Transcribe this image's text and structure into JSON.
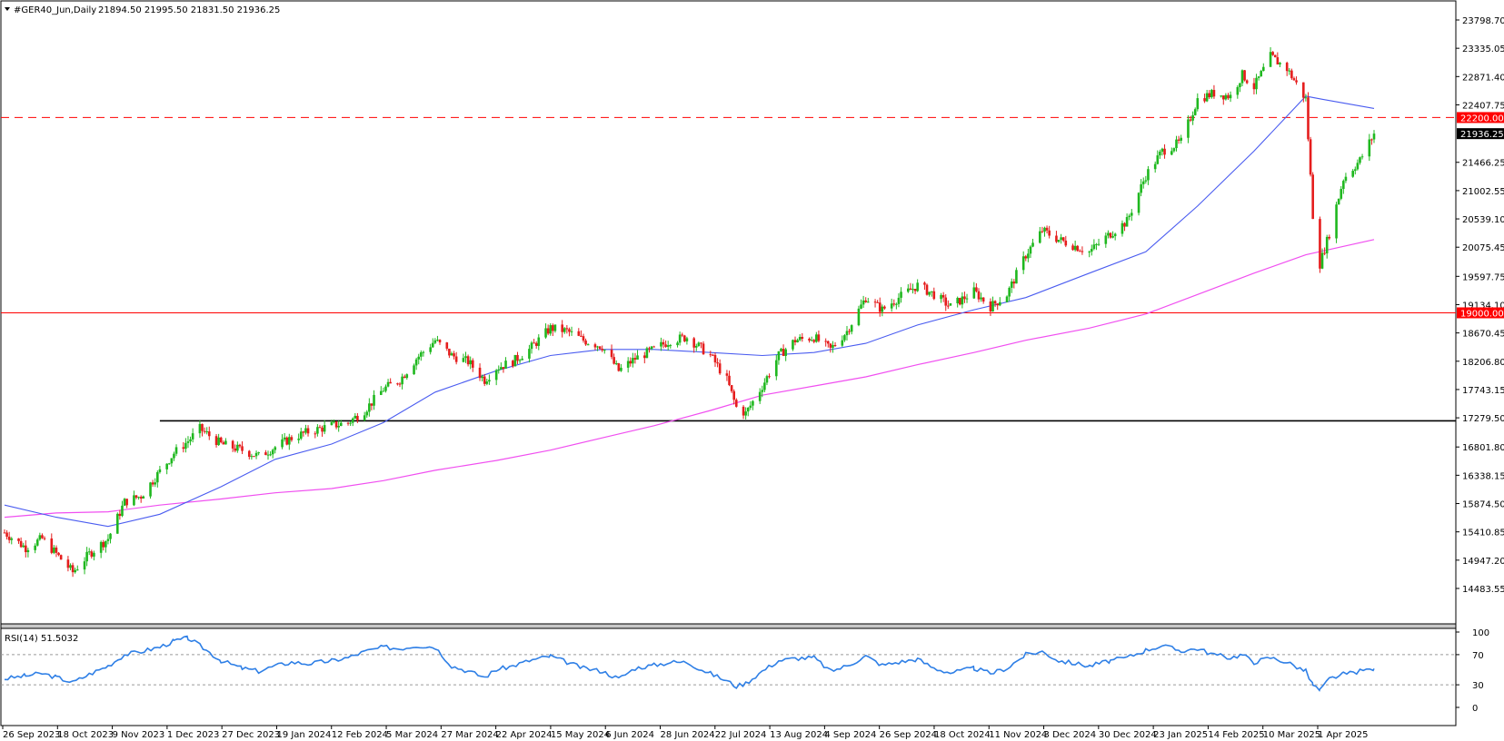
{
  "header": {
    "symbol": "#GER40_Jun,Daily",
    "ohlc": "21894.50 21995.50 21831.50 21936.25"
  },
  "rsi_header": "RSI(14) 51.5032",
  "colors": {
    "bull": "#1fb81f",
    "bear": "#e51d1d",
    "ma_fast": "#4a5cf0",
    "ma_slow": "#f04ff0",
    "rsi": "#2e7fe6",
    "support": "#000000",
    "level_red": "#ff0000",
    "price_tag_bg": "#000000"
  },
  "chart_data": [
    {
      "type": "candlestick",
      "title": "#GER40_Jun,Daily",
      "ylim": [
        14483.55,
        23798.7
      ],
      "y_ticks": [
        "23798.70",
        "23335.05",
        "22871.40",
        "22407.75",
        "21466.25",
        "21002.55",
        "20539.10",
        "20075.45",
        "19597.75",
        "19134.10",
        "18670.45",
        "18206.80",
        "17743.15",
        "17279.50",
        "16801.80",
        "16338.15",
        "15874.50",
        "15410.85",
        "14947.20",
        "14483.55"
      ],
      "x_tick_labels": [
        "26 Sep 2023",
        "18 Oct 2023",
        "9 Nov 2023",
        "1 Dec 2023",
        "27 Dec 2023",
        "19 Jan 2024",
        "12 Feb 2024",
        "5 Mar 2024",
        "27 Mar 2024",
        "22 Apr 2024",
        "15 May 2024",
        "6 Jun 2024",
        "28 Jun 2024",
        "22 Jul 2024",
        "13 Aug 2024",
        "4 Sep 2024",
        "26 Sep 2024",
        "18 Oct 2024",
        "11 Nov 2024",
        "3 Dec 2024",
        "30 Dec 2024",
        "23 Jan 2025",
        "14 Feb 2025",
        "10 Mar 2025",
        "1 Apr 2025"
      ],
      "close_series": [
        [
          "26 Sep 2023",
          15400
        ],
        [
          "5 Oct 2023",
          15150
        ],
        [
          "12 Oct 2023",
          15300
        ],
        [
          "18 Oct 2023",
          15050
        ],
        [
          "25 Oct 2023",
          14750
        ],
        [
          "1 Nov 2023",
          15050
        ],
        [
          "9 Nov 2023",
          15300
        ],
        [
          "16 Nov 2023",
          15900
        ],
        [
          "23 Nov 2023",
          16000
        ],
        [
          "1 Dec 2023",
          16400
        ],
        [
          "7 Dec 2023",
          16700
        ],
        [
          "13 Dec 2023",
          16900
        ],
        [
          "18 Dec 2023",
          17100
        ],
        [
          "27 Dec 2023",
          16850
        ],
        [
          "5 Jan 2024",
          16750
        ],
        [
          "12 Jan 2024",
          16650
        ],
        [
          "19 Jan 2024",
          16800
        ],
        [
          "26 Jan 2024",
          16950
        ],
        [
          "2 Feb 2024",
          17050
        ],
        [
          "12 Feb 2024",
          17150
        ],
        [
          "19 Feb 2024",
          17200
        ],
        [
          "26 Feb 2024",
          17400
        ],
        [
          "5 Mar 2024",
          17750
        ],
        [
          "12 Mar 2024",
          17900
        ],
        [
          "19 Mar 2024",
          18250
        ],
        [
          "27 Mar 2024",
          18550
        ],
        [
          "3 Apr 2024",
          18300
        ],
        [
          "10 Apr 2024",
          18200
        ],
        [
          "17 Apr 2024",
          17900
        ],
        [
          "22 Apr 2024",
          18100
        ],
        [
          "29 Apr 2024",
          18200
        ],
        [
          "6 May 2024",
          18400
        ],
        [
          "15 May 2024",
          18750
        ],
        [
          "22 May 2024",
          18700
        ],
        [
          "29 May 2024",
          18550
        ],
        [
          "6 Jun 2024",
          18450
        ],
        [
          "13 Jun 2024",
          18050
        ],
        [
          "20 Jun 2024",
          18250
        ],
        [
          "28 Jun 2024",
          18400
        ],
        [
          "5 Jul 2024",
          18550
        ],
        [
          "12 Jul 2024",
          18600
        ],
        [
          "17 Jul 2024",
          18450
        ],
        [
          "22 Jul 2024",
          18300
        ],
        [
          "29 Jul 2024",
          17900
        ],
        [
          "2 Aug 2024",
          17450
        ],
        [
          "6 Aug 2024",
          17350
        ],
        [
          "13 Aug 2024",
          17800
        ],
        [
          "20 Aug 2024",
          18300
        ],
        [
          "27 Aug 2024",
          18550
        ],
        [
          "4 Sep 2024",
          18600
        ],
        [
          "11 Sep 2024",
          18400
        ],
        [
          "18 Sep 2024",
          18700
        ],
        [
          "26 Sep 2024",
          19250
        ],
        [
          "3 Oct 2024",
          19050
        ],
        [
          "10 Oct 2024",
          19250
        ],
        [
          "18 Oct 2024",
          19450
        ],
        [
          "25 Oct 2024",
          19300
        ],
        [
          "1 Nov 2024",
          19100
        ],
        [
          "11 Nov 2024",
          19350
        ],
        [
          "18 Nov 2024",
          19100
        ],
        [
          "25 Nov 2024",
          19300
        ],
        [
          "3 Dec 2024",
          19950
        ],
        [
          "10 Dec 2024",
          20350
        ],
        [
          "17 Dec 2024",
          20200
        ],
        [
          "30 Dec 2024",
          20000
        ],
        [
          "8 Jan 2025",
          20300
        ],
        [
          "15 Jan 2025",
          20500
        ],
        [
          "23 Jan 2025",
          21250
        ],
        [
          "30 Jan 2025",
          21650
        ],
        [
          "7 Feb 2025",
          21800
        ],
        [
          "14 Feb 2025",
          22500
        ],
        [
          "21 Feb 2025",
          22600
        ],
        [
          "28 Feb 2025",
          22550
        ],
        [
          "5 Mar 2025",
          22900
        ],
        [
          "10 Mar 2025",
          22700
        ],
        [
          "17 Mar 2025",
          23200
        ],
        [
          "24 Mar 2025",
          23000
        ],
        [
          "1 Apr 2025",
          22500
        ],
        [
          "4 Apr 2025",
          20600
        ],
        [
          "7 Apr 2025",
          19800
        ],
        [
          "11 Apr 2025",
          20300
        ],
        [
          "17 Apr 2025",
          21200
        ],
        [
          "24 Apr 2025",
          21500
        ],
        [
          "30 Apr 2025",
          21936.25
        ]
      ],
      "ma_fast": [
        [
          "26 Sep 2023",
          15850
        ],
        [
          "18 Oct 2023",
          15650
        ],
        [
          "9 Nov 2023",
          15500
        ],
        [
          "1 Dec 2023",
          15700
        ],
        [
          "27 Dec 2023",
          16150
        ],
        [
          "19 Jan 2024",
          16600
        ],
        [
          "12 Feb 2024",
          16850
        ],
        [
          "5 Mar 2024",
          17200
        ],
        [
          "27 Mar 2024",
          17700
        ],
        [
          "22 Apr 2024",
          18050
        ],
        [
          "15 May 2024",
          18300
        ],
        [
          "6 Jun 2024",
          18400
        ],
        [
          "28 Jun 2024",
          18400
        ],
        [
          "22 Jul 2024",
          18350
        ],
        [
          "13 Aug 2024",
          18300
        ],
        [
          "4 Sep 2024",
          18350
        ],
        [
          "26 Sep 2024",
          18500
        ],
        [
          "18 Oct 2024",
          18800
        ],
        [
          "11 Nov 2024",
          19050
        ],
        [
          "3 Dec 2024",
          19250
        ],
        [
          "30 Dec 2024",
          19650
        ],
        [
          "23 Jan 2025",
          20000
        ],
        [
          "14 Feb 2025",
          20750
        ],
        [
          "10 Mar 2025",
          21650
        ],
        [
          "1 Apr 2025",
          22550
        ],
        [
          "8 Apr 2025",
          22500
        ],
        [
          "30 Apr 2025",
          22350
        ]
      ],
      "ma_slow": [
        [
          "26 Sep 2023",
          15650
        ],
        [
          "18 Oct 2023",
          15720
        ],
        [
          "9 Nov 2023",
          15740
        ],
        [
          "1 Dec 2023",
          15850
        ],
        [
          "27 Dec 2023",
          15950
        ],
        [
          "19 Jan 2024",
          16050
        ],
        [
          "12 Feb 2024",
          16120
        ],
        [
          "5 Mar 2024",
          16250
        ],
        [
          "27 Mar 2024",
          16420
        ],
        [
          "22 Apr 2024",
          16580
        ],
        [
          "15 May 2024",
          16750
        ],
        [
          "6 Jun 2024",
          16950
        ],
        [
          "28 Jun 2024",
          17150
        ],
        [
          "22 Jul 2024",
          17400
        ],
        [
          "13 Aug 2024",
          17650
        ],
        [
          "4 Sep 2024",
          17800
        ],
        [
          "26 Sep 2024",
          17950
        ],
        [
          "18 Oct 2024",
          18150
        ],
        [
          "11 Nov 2024",
          18350
        ],
        [
          "3 Dec 2024",
          18550
        ],
        [
          "30 Dec 2024",
          18750
        ],
        [
          "23 Jan 2025",
          18980
        ],
        [
          "14 Feb 2025",
          19300
        ],
        [
          "10 Mar 2025",
          19650
        ],
        [
          "1 Apr 2025",
          19950
        ],
        [
          "30 Apr 2025",
          20200
        ]
      ],
      "horizontal_levels": [
        {
          "value": 22200.0,
          "label": "22200.00",
          "style": "dashed",
          "color": "#ff0000"
        },
        {
          "value": 19000.0,
          "label": "19000.00",
          "style": "solid",
          "color": "#ff0000"
        },
        {
          "value": 17230.0,
          "style": "solid",
          "color": "#000000",
          "from": "1 Dec 2023"
        }
      ],
      "last_price": {
        "value": 21936.25,
        "label": "21936.25"
      }
    },
    {
      "type": "line",
      "title": "RSI(14) 51.5032",
      "ylim": [
        0,
        100
      ],
      "y_ticks": [
        "100",
        "70",
        "30",
        "0"
      ],
      "levels": [
        70,
        30
      ],
      "series": [
        {
          "name": "RSI(14)",
          "values": [
            [
              "26 Sep 2023",
              38
            ],
            [
              "5 Oct 2023",
              42
            ],
            [
              "12 Oct 2023",
              45
            ],
            [
              "18 Oct 2023",
              40
            ],
            [
              "25 Oct 2023",
              33
            ],
            [
              "1 Nov 2023",
              44
            ],
            [
              "9 Nov 2023",
              55
            ],
            [
              "16 Nov 2023",
              70
            ],
            [
              "23 Nov 2023",
              74
            ],
            [
              "1 Dec 2023",
              80
            ],
            [
              "7 Dec 2023",
              88
            ],
            [
              "13 Dec 2023",
              92
            ],
            [
              "18 Dec 2023",
              82
            ],
            [
              "27 Dec 2023",
              62
            ],
            [
              "5 Jan 2024",
              52
            ],
            [
              "12 Jan 2024",
              48
            ],
            [
              "19 Jan 2024",
              55
            ],
            [
              "26 Jan 2024",
              60
            ],
            [
              "2 Feb 2024",
              58
            ],
            [
              "12 Feb 2024",
              62
            ],
            [
              "19 Feb 2024",
              66
            ],
            [
              "26 Feb 2024",
              74
            ],
            [
              "5 Mar 2024",
              80
            ],
            [
              "12 Mar 2024",
              78
            ],
            [
              "19 Mar 2024",
              82
            ],
            [
              "27 Mar 2024",
              80
            ],
            [
              "3 Apr 2024",
              55
            ],
            [
              "10 Apr 2024",
              48
            ],
            [
              "17 Apr 2024",
              40
            ],
            [
              "22 Apr 2024",
              50
            ],
            [
              "29 Apr 2024",
              55
            ],
            [
              "6 May 2024",
              62
            ],
            [
              "15 May 2024",
              68
            ],
            [
              "22 May 2024",
              60
            ],
            [
              "29 May 2024",
              52
            ],
            [
              "6 Jun 2024",
              48
            ],
            [
              "13 Jun 2024",
              38
            ],
            [
              "20 Jun 2024",
              52
            ],
            [
              "28 Jun 2024",
              56
            ],
            [
              "5 Jul 2024",
              60
            ],
            [
              "12 Jul 2024",
              60
            ],
            [
              "17 Jul 2024",
              52
            ],
            [
              "22 Jul 2024",
              45
            ],
            [
              "29 Jul 2024",
              35
            ],
            [
              "2 Aug 2024",
              28
            ],
            [
              "6 Aug 2024",
              32
            ],
            [
              "13 Aug 2024",
              48
            ],
            [
              "20 Aug 2024",
              62
            ],
            [
              "27 Aug 2024",
              65
            ],
            [
              "4 Sep 2024",
              66
            ],
            [
              "11 Sep 2024",
              48
            ],
            [
              "18 Sep 2024",
              55
            ],
            [
              "26 Sep 2024",
              68
            ],
            [
              "3 Oct 2024",
              56
            ],
            [
              "10 Oct 2024",
              60
            ],
            [
              "18 Oct 2024",
              64
            ],
            [
              "25 Oct 2024",
              52
            ],
            [
              "1 Nov 2024",
              46
            ],
            [
              "11 Nov 2024",
              52
            ],
            [
              "18 Nov 2024",
              45
            ],
            [
              "25 Nov 2024",
              52
            ],
            [
              "3 Dec 2024",
              70
            ],
            [
              "10 Dec 2024",
              74
            ],
            [
              "17 Dec 2024",
              62
            ],
            [
              "30 Dec 2024",
              55
            ],
            [
              "8 Jan 2025",
              62
            ],
            [
              "15 Jan 2025",
              66
            ],
            [
              "23 Jan 2025",
              76
            ],
            [
              "30 Jan 2025",
              82
            ],
            [
              "7 Feb 2025",
              75
            ],
            [
              "14 Feb 2025",
              78
            ],
            [
              "21 Feb 2025",
              70
            ],
            [
              "28 Feb 2025",
              66
            ],
            [
              "5 Mar 2025",
              70
            ],
            [
              "10 Mar 2025",
              60
            ],
            [
              "17 Mar 2025",
              66
            ],
            [
              "24 Mar 2025",
              60
            ],
            [
              "1 Apr 2025",
              48
            ],
            [
              "4 Apr 2025",
              30
            ],
            [
              "7 Apr 2025",
              22
            ],
            [
              "11 Apr 2025",
              38
            ],
            [
              "17 Apr 2025",
              44
            ],
            [
              "24 Apr 2025",
              48
            ],
            [
              "30 Apr 2025",
              51.5032
            ]
          ]
        }
      ]
    }
  ]
}
